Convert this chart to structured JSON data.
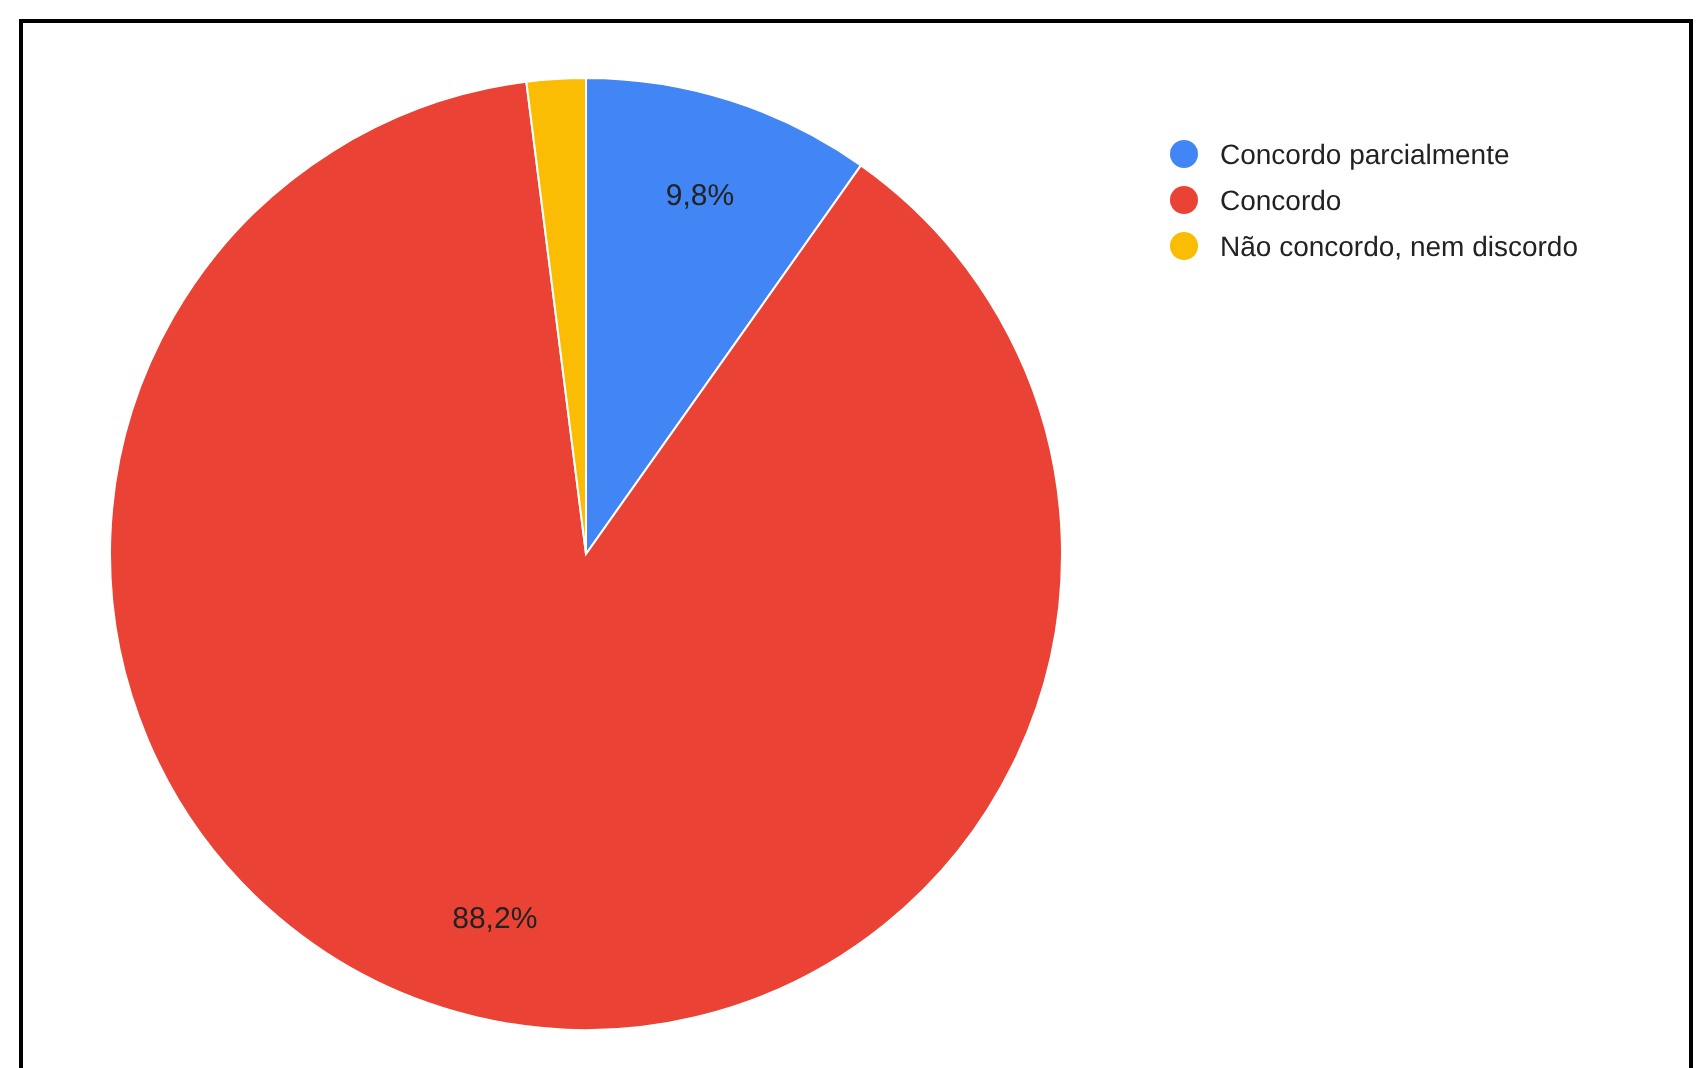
{
  "chart_data": {
    "type": "pie",
    "categories": [
      "Concordo parcialmente",
      "Concordo",
      "Não concordo, nem discordo"
    ],
    "values": [
      9.8,
      88.2,
      2.0
    ],
    "colors": [
      "#4285f4",
      "#ea4335",
      "#fbbc04"
    ],
    "value_labels": [
      "9,8%",
      "88,2%",
      null
    ],
    "legend": "top right"
  }
}
